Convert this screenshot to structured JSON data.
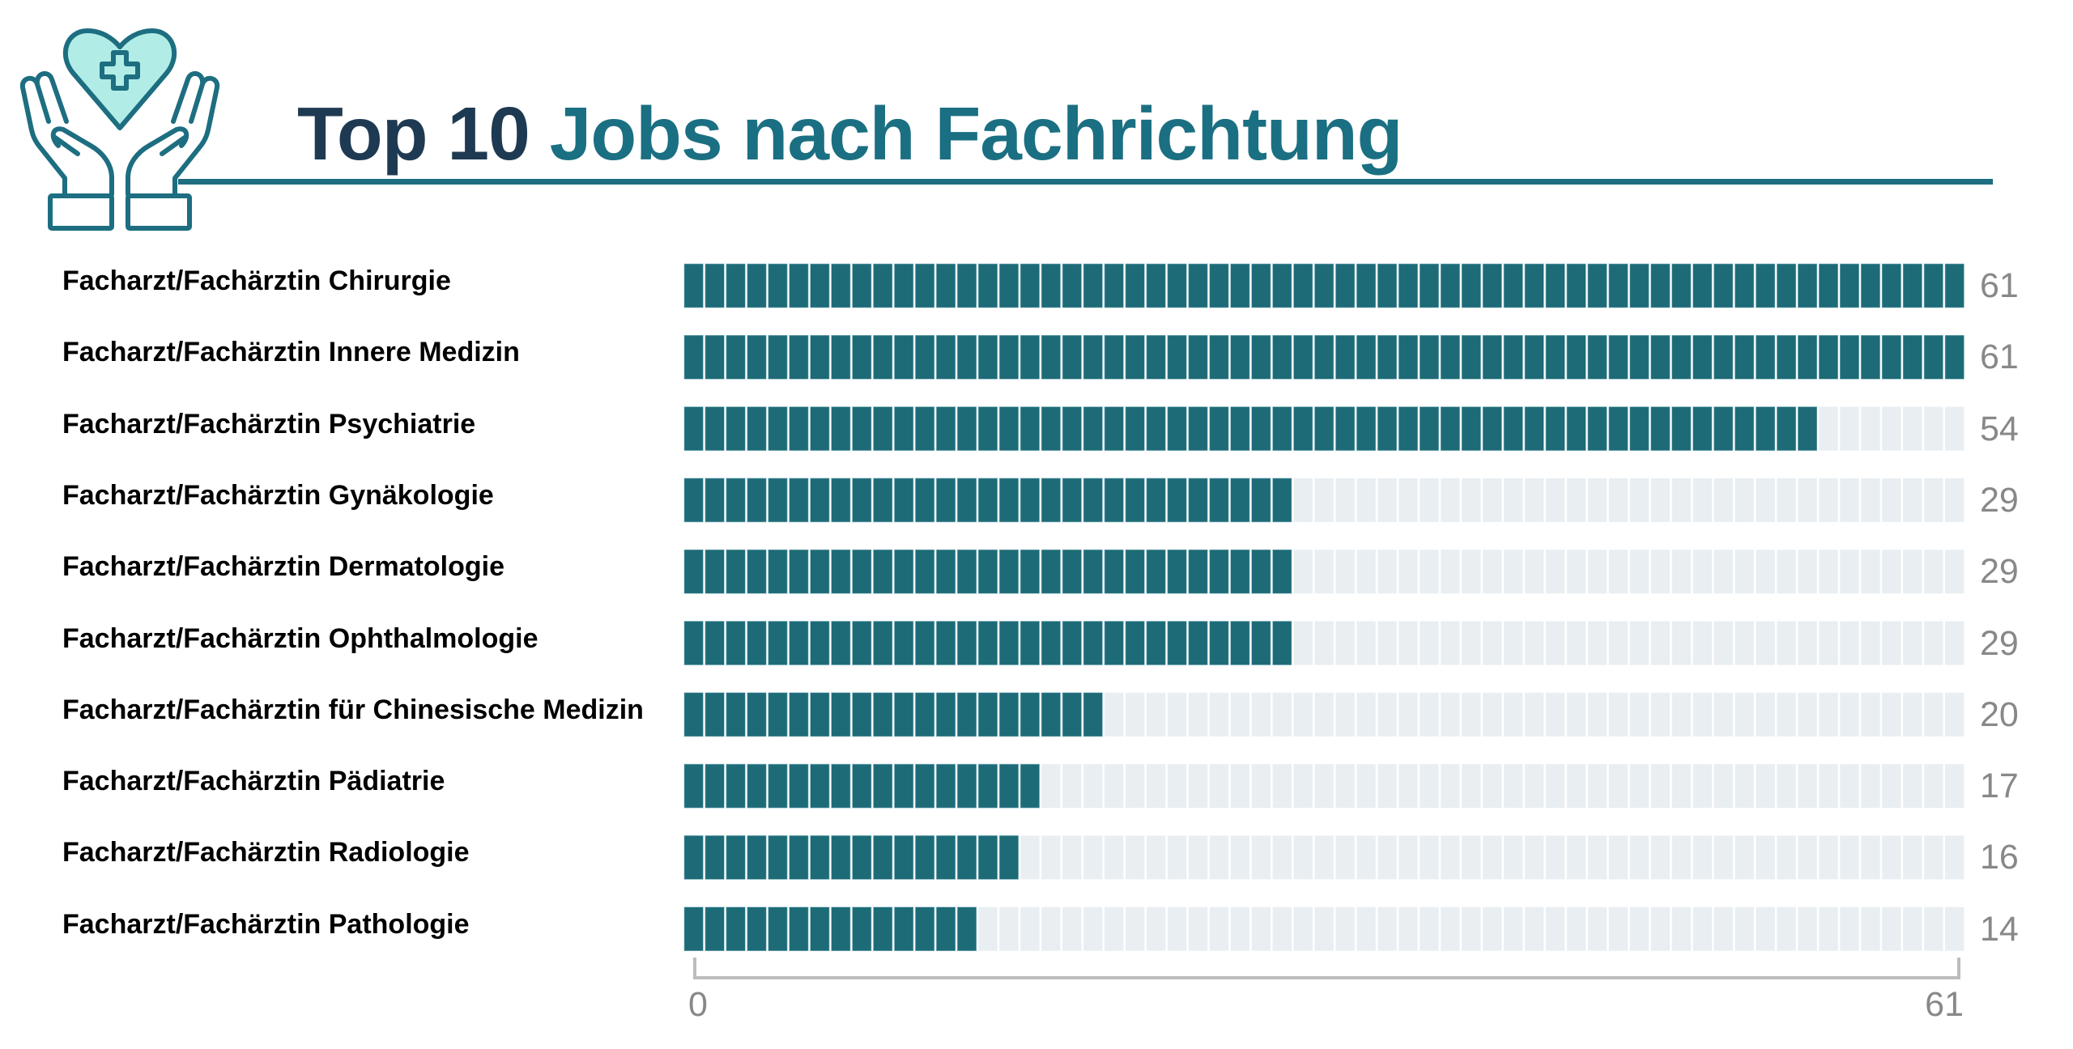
{
  "header": {
    "title_part1": "Top 10",
    "title_part2": "Jobs nach Fachrichtung",
    "logo_icon": "hands-holding-heart-medical-cross-icon"
  },
  "colors": {
    "title_dark": "#1e3a52",
    "title_teal": "#1b6f82",
    "bar_fill": "#1e6b78",
    "bar_empty": "#e8eef2",
    "axis": "#bdbdbd",
    "value_text": "#888888",
    "icon_stroke": "#1d6e80",
    "icon_fill": "#b1ede6"
  },
  "chart_data": {
    "type": "bar",
    "orientation": "horizontal",
    "style": "waffle-cells",
    "title": "Top 10 Jobs nach Fachrichtung",
    "categories": [
      "Facharzt/Fachärztin Chirurgie",
      "Facharzt/Fachärztin Innere Medizin",
      "Facharzt/Fachärztin Psychiatrie",
      "Facharzt/Fachärztin Gynäkologie",
      "Facharzt/Fachärztin Dermatologie",
      "Facharzt/Fachärztin Ophthalmologie",
      "Facharzt/Fachärztin für Chinesische Medizin",
      "Facharzt/Fachärztin Pädiatrie",
      "Facharzt/Fachärztin Radiologie",
      "Facharzt/Fachärztin Pathologie"
    ],
    "values": [
      61,
      61,
      54,
      29,
      29,
      29,
      20,
      17,
      16,
      14
    ],
    "value_labels": [
      "61",
      "61",
      "54",
      "29",
      "29",
      "29",
      "20",
      "17",
      "16",
      "14"
    ],
    "xlim": [
      0,
      61
    ],
    "xticks": [
      "0",
      "61"
    ],
    "xlabel": "",
    "ylabel": "",
    "grid": false,
    "legend": "none"
  }
}
